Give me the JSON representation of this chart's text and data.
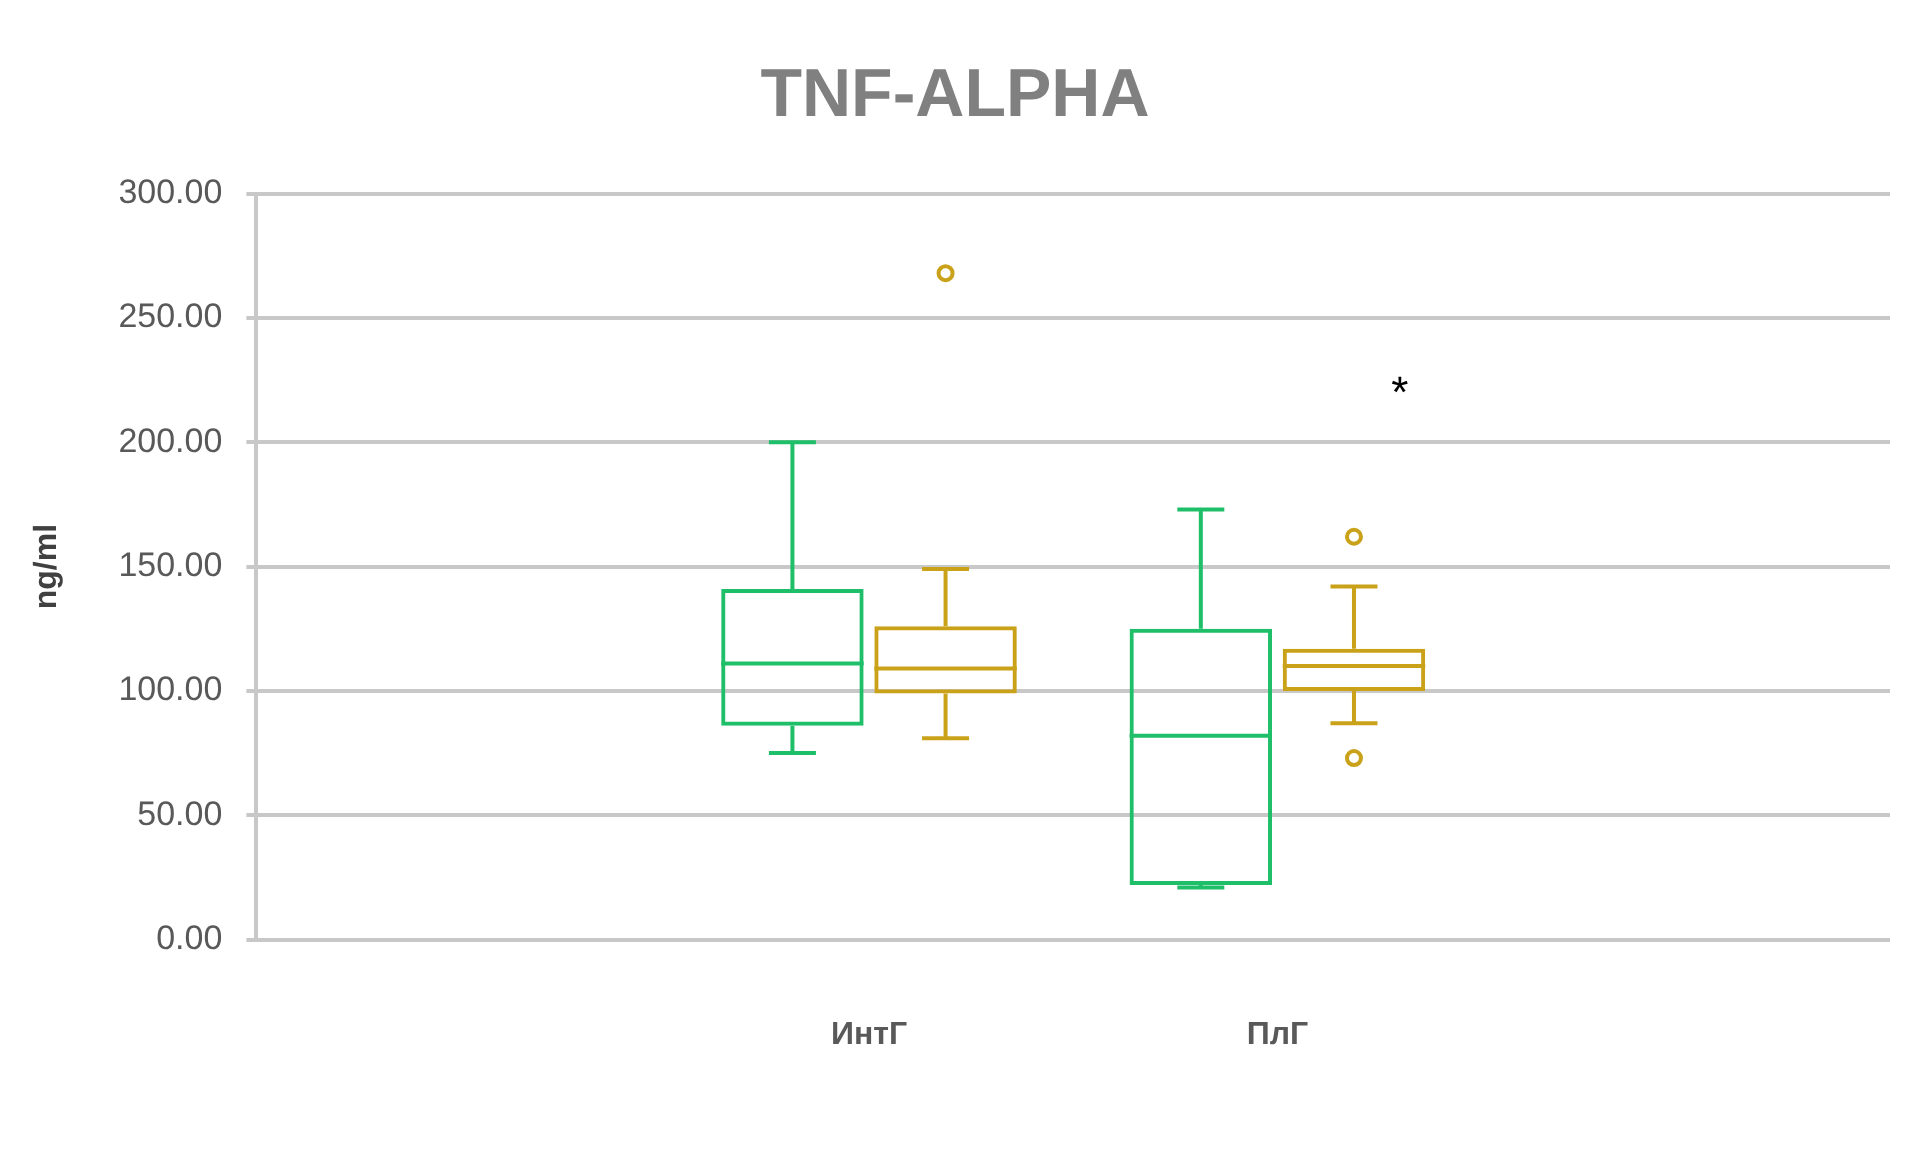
{
  "chart_data": {
    "type": "box",
    "title": "TNF-ALPHA",
    "ylabel": "ng/ml",
    "categories": [
      null,
      "ИнтГ",
      "ПлГ",
      null
    ],
    "series": [
      {
        "color": "#1fbf6a",
        "boxes": [
          null,
          {
            "low": 75,
            "q1": 86,
            "median": 111,
            "q3": 141,
            "high": 200
          },
          {
            "low": 21,
            "q1": 22,
            "median": 82,
            "q3": 125,
            "high": 173
          },
          null
        ]
      },
      {
        "color": "#c9a21a",
        "boxes": [
          null,
          {
            "low": 81,
            "q1": 99,
            "median": 109,
            "q3": 126,
            "high": 149,
            "outliers": [
              268
            ]
          },
          {
            "low": 87,
            "q1": 100,
            "median": 110,
            "q3": 117,
            "high": 142,
            "outliers": [
              162,
              73
            ]
          },
          null
        ]
      }
    ],
    "ylim": [
      0,
      300
    ],
    "yticks": [
      {
        "value": 0,
        "label": "0.00"
      },
      {
        "value": 50,
        "label": "50.00"
      },
      {
        "value": 100,
        "label": "100.00"
      },
      {
        "value": 150,
        "label": "150.00"
      },
      {
        "value": 200,
        "label": "200.00"
      },
      {
        "value": 250,
        "label": "250.00"
      },
      {
        "value": 300,
        "label": "300.00"
      }
    ],
    "grid": "y",
    "legend": false,
    "marker": "circle",
    "annotations": [
      "*"
    ]
  }
}
